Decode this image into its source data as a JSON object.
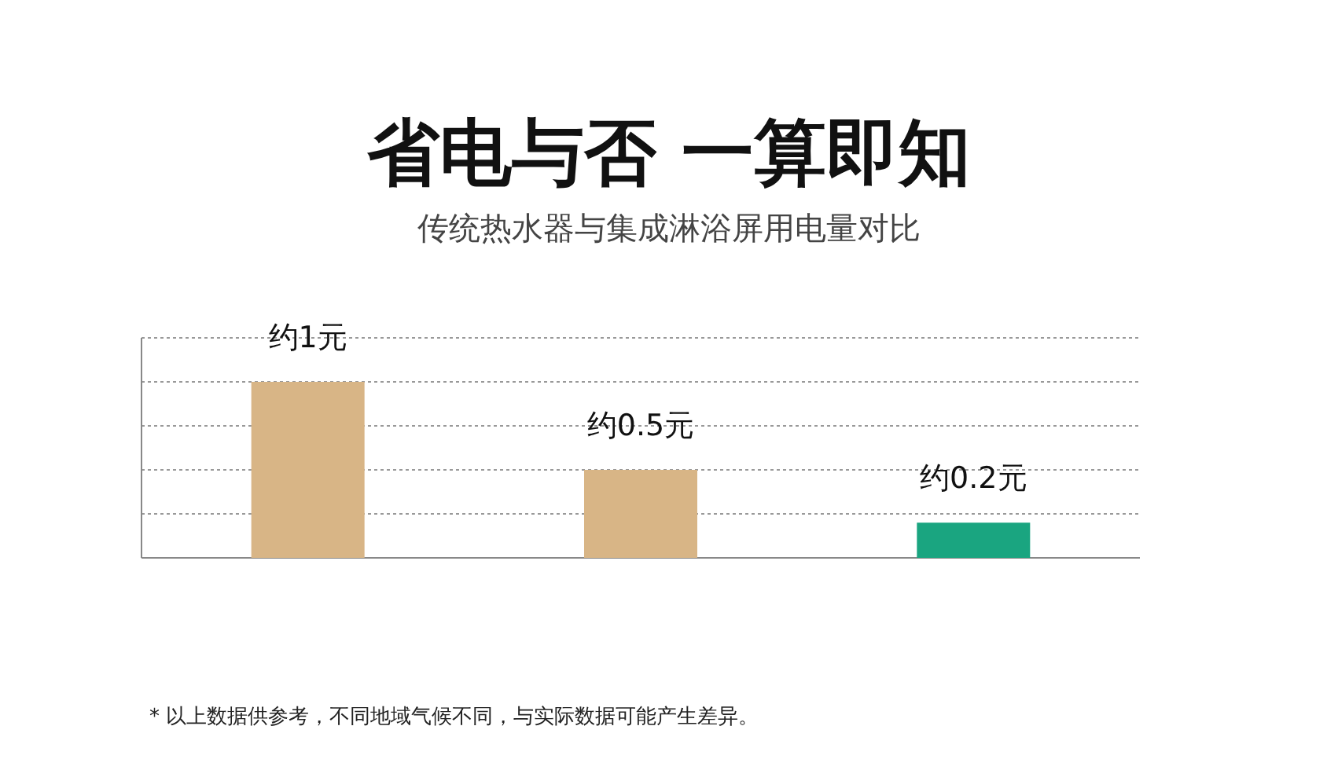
{
  "chart_data": {
    "type": "bar",
    "title": "省电与否 一算即知",
    "subtitle": "传统热水器与集成淋浴屏用电量对比",
    "annotations": [
      "* 以上数据供参考，不同地域气候不同，与实际数据可能产生差异。"
    ],
    "categories": [
      null,
      null,
      null
    ],
    "values": [
      1,
      0.5,
      0.2
    ],
    "colors": [
      "#d8b586",
      "#d8b586",
      "#1aa580"
    ],
    "value_labels": [
      "约1元",
      "约0.5元",
      "约0.2元"
    ],
    "ylim": [
      0,
      1.25
    ],
    "yticks": [
      {
        "value": 0.25,
        "label": null
      },
      {
        "value": 0.5,
        "label": null
      },
      {
        "value": 0.75,
        "label": null
      },
      {
        "value": 1,
        "label": null
      },
      {
        "value": 1.25,
        "label": null
      }
    ],
    "grid": "y"
  }
}
